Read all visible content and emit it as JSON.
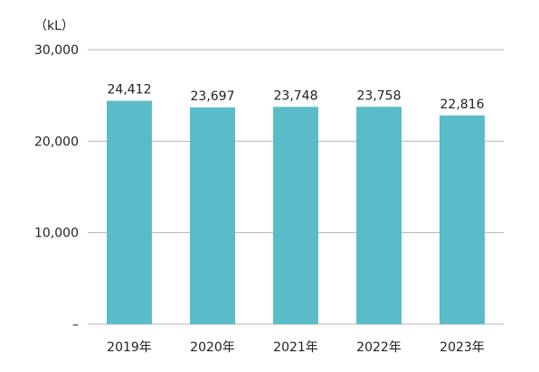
{
  "chart_data": {
    "type": "bar",
    "unit": "（kL）",
    "categories": [
      "2019年",
      "2020年",
      "2021年",
      "2022年",
      "2023年"
    ],
    "values": [
      24412,
      23697,
      23748,
      23758,
      22816
    ],
    "value_labels": [
      "24,412",
      "23,697",
      "23,748",
      "23,758",
      "22,816"
    ],
    "ylim": [
      0,
      30000
    ],
    "yticks": [
      0,
      10000,
      20000,
      30000
    ],
    "ytick_labels": [
      "–",
      "10,000",
      "20,000",
      "30,000"
    ],
    "grid": true,
    "legend": "none",
    "colors": {
      "bar": "#5bbcc9",
      "grid": "#b5b5b5",
      "text": "#222222"
    }
  }
}
